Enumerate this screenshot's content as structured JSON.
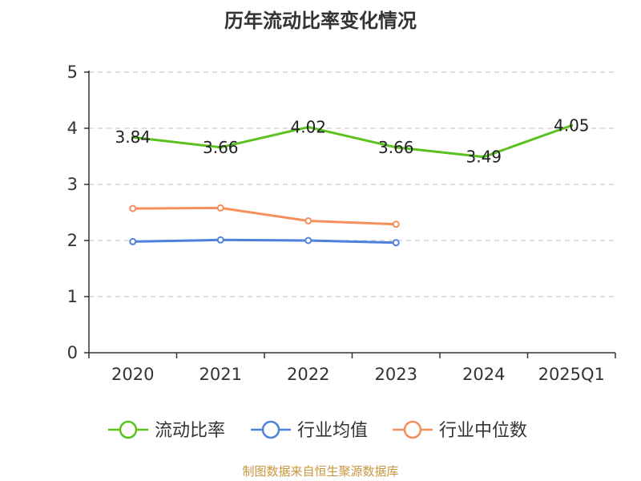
{
  "title": "历年流动比率变化情况",
  "source_note": "制图数据来自恒生聚源数据库",
  "chart_data": {
    "type": "line",
    "title": "历年流动比率变化情况",
    "categories": [
      "2020",
      "2021",
      "2022",
      "2023",
      "2024",
      "2025Q1"
    ],
    "ylim": [
      0,
      5
    ],
    "yticks": [
      0,
      1,
      2,
      3,
      4,
      5
    ],
    "grid": true,
    "legend_position": "bottom",
    "series": [
      {
        "name": "流动比率",
        "color": "#5bc120",
        "values": [
          3.84,
          3.66,
          4.02,
          3.66,
          3.49,
          4.05
        ],
        "show_labels": true
      },
      {
        "name": "行业均值",
        "color": "#4f81dd",
        "values": [
          1.98,
          2.01,
          2.0,
          1.96,
          null,
          null
        ],
        "show_labels": false
      },
      {
        "name": "行业中位数",
        "color": "#f58f5c",
        "values": [
          2.57,
          2.58,
          2.35,
          2.29,
          null,
          null
        ],
        "show_labels": false
      }
    ]
  },
  "colors": {
    "axis": "#333333",
    "grid": "#cccccc",
    "source_note": "#c8963e"
  }
}
